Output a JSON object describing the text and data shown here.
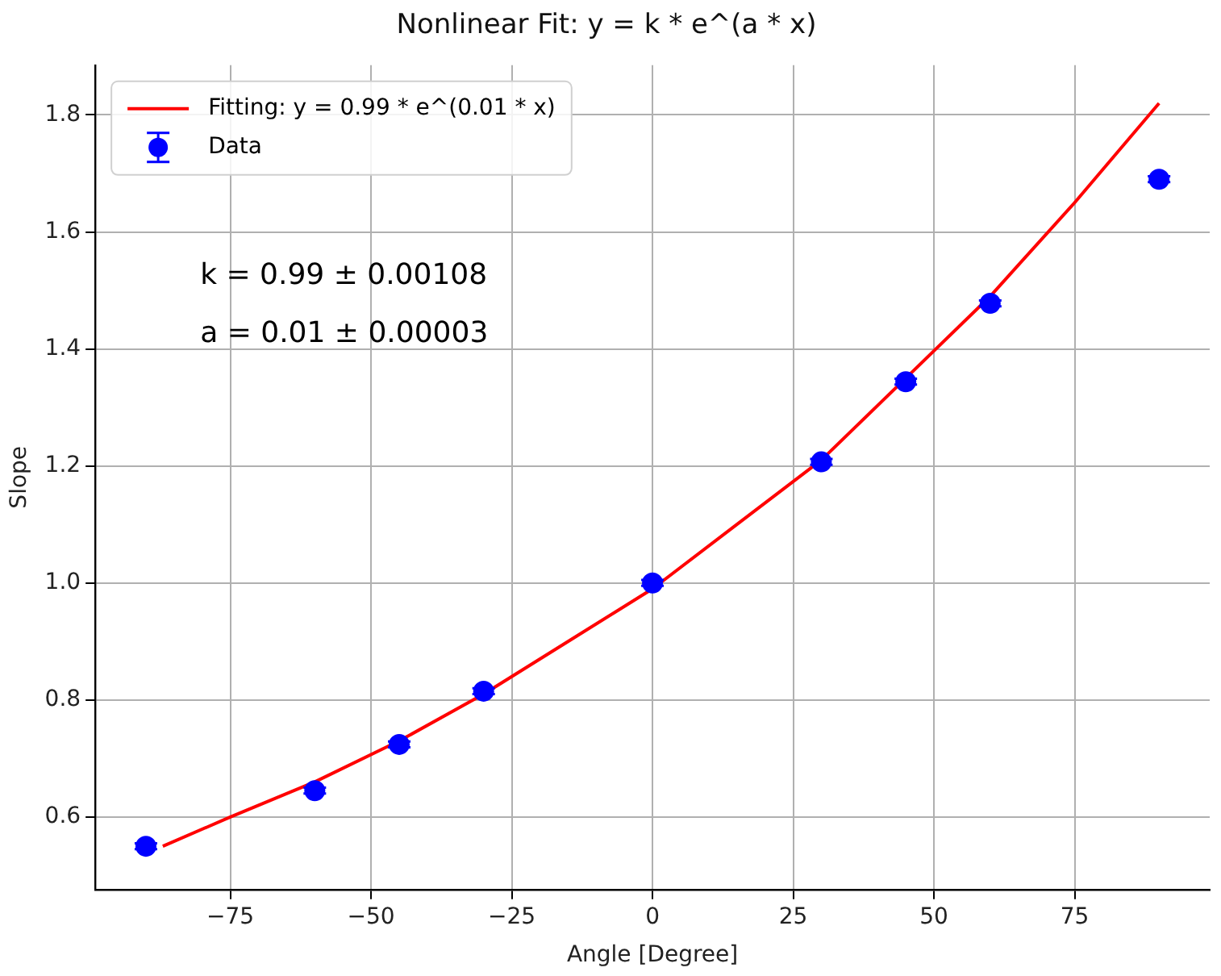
{
  "chart_data": {
    "type": "scatter",
    "title": "Nonlinear Fit: y = k * e^(a * x)",
    "xlabel": "Angle [Degree]",
    "ylabel": "Slope",
    "x": [
      -90,
      -60,
      -45,
      -30,
      0,
      30,
      45,
      60,
      90
    ],
    "series": [
      {
        "name": "Fitting: y = 0.99 * e^(0.01 * x)",
        "type": "line",
        "color": "#ff0000",
        "marker": "none",
        "line_style": "solid",
        "x": [
          -87,
          -75,
          -60,
          -45,
          -30,
          -15,
          0,
          15,
          30,
          45,
          60,
          75,
          90
        ],
        "values": [
          0.55,
          0.6,
          0.66,
          0.73,
          0.81,
          0.9,
          0.99,
          1.1,
          1.21,
          1.35,
          1.49,
          1.65,
          1.82
        ]
      },
      {
        "name": "Data",
        "color": "#0000ff",
        "marker": "circle",
        "values": [
          0.55,
          0.645,
          0.724,
          0.815,
          1.0,
          1.207,
          1.344,
          1.478,
          1.69
        ],
        "errors": [
          0.005,
          0.005,
          0.005,
          0.005,
          0.005,
          0.005,
          0.005,
          0.005,
          0.005
        ]
      }
    ],
    "annotations": [
      "k = 0.99 ± 0.00108",
      "a = 0.01 ± 0.00003"
    ],
    "xlim": [
      -99,
      99
    ],
    "ylim": [
      0.476,
      1.885
    ],
    "xticks": [
      -75,
      -50,
      -25,
      0,
      25,
      50,
      75
    ],
    "yticks": [
      0.6,
      0.8,
      {
        "value": 1,
        "label": "1.0"
      },
      1.2,
      1.4,
      1.6,
      1.8
    ],
    "grid": true,
    "legend": "top left"
  }
}
